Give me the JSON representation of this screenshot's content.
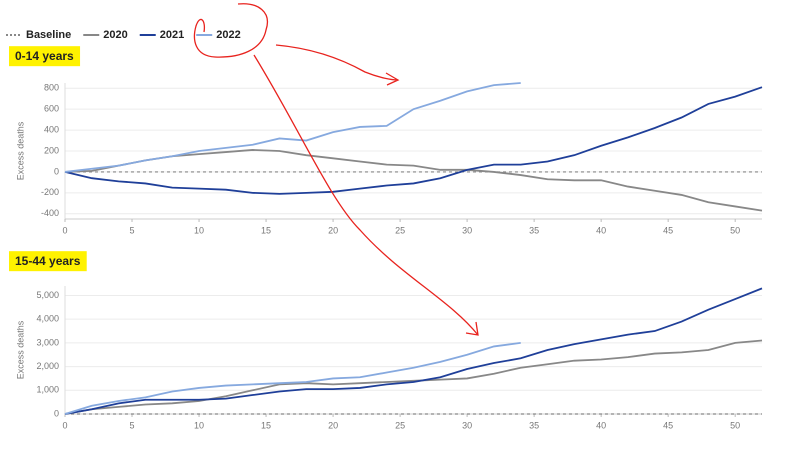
{
  "chart_data": [
    {
      "type": "line",
      "title": "0-14 years",
      "ylabel": "Excess deaths",
      "x": [
        0,
        2,
        4,
        6,
        8,
        10,
        12,
        14,
        16,
        18,
        20,
        22,
        24,
        26,
        28,
        30,
        32,
        34,
        36,
        38,
        40,
        42,
        44,
        46,
        48,
        50,
        52
      ],
      "series": [
        {
          "name": "Baseline",
          "color": "#888888",
          "dashed": true,
          "values": [
            0,
            0,
            0,
            0,
            0,
            0,
            0,
            0,
            0,
            0,
            0,
            0,
            0,
            0,
            0,
            0,
            0,
            0,
            0,
            0,
            0,
            0,
            0,
            0,
            0,
            0,
            0
          ]
        },
        {
          "name": "2020",
          "color": "#888888",
          "values": [
            0,
            10,
            60,
            110,
            150,
            170,
            190,
            210,
            200,
            160,
            130,
            100,
            70,
            60,
            20,
            20,
            0,
            -30,
            -70,
            -80,
            -80,
            -140,
            -180,
            -220,
            -290,
            -330,
            -370
          ]
        },
        {
          "name": "2021",
          "color": "#1f3f99",
          "values": [
            0,
            -60,
            -90,
            -110,
            -150,
            -160,
            -170,
            -200,
            -210,
            -200,
            -190,
            -160,
            -130,
            -110,
            -60,
            20,
            70,
            70,
            100,
            160,
            250,
            330,
            420,
            520,
            650,
            720,
            810
          ]
        },
        {
          "name": "2022",
          "color": "#86a9df",
          "values": [
            0,
            30,
            60,
            110,
            150,
            200,
            230,
            260,
            320,
            300,
            380,
            430,
            440,
            600,
            680,
            770,
            830,
            850,
            null,
            null,
            null,
            null,
            null,
            null,
            null,
            null,
            null
          ]
        }
      ],
      "xlim": [
        0,
        52
      ],
      "xticks": [
        0,
        5,
        10,
        15,
        20,
        25,
        30,
        35,
        40,
        45,
        50
      ],
      "ylim": [
        -450,
        850
      ],
      "yticks": [
        -400,
        -200,
        0,
        200,
        400,
        600,
        800
      ],
      "grid": true
    },
    {
      "type": "line",
      "title": "15-44 years",
      "ylabel": "Excess deaths",
      "x": [
        0,
        2,
        4,
        6,
        8,
        10,
        12,
        14,
        16,
        18,
        20,
        22,
        24,
        26,
        28,
        30,
        32,
        34,
        36,
        38,
        40,
        42,
        44,
        46,
        48,
        50,
        52
      ],
      "series": [
        {
          "name": "Baseline",
          "color": "#888888",
          "dashed": true,
          "values": [
            0,
            0,
            0,
            0,
            0,
            0,
            0,
            0,
            0,
            0,
            0,
            0,
            0,
            0,
            0,
            0,
            0,
            0,
            0,
            0,
            0,
            0,
            0,
            0,
            0,
            0,
            0
          ]
        },
        {
          "name": "2020",
          "color": "#888888",
          "values": [
            0,
            200,
            300,
            400,
            450,
            550,
            750,
            1000,
            1250,
            1300,
            1250,
            1300,
            1350,
            1400,
            1450,
            1500,
            1700,
            1950,
            2100,
            2250,
            2300,
            2400,
            2550,
            2600,
            2700,
            3000,
            3100
          ]
        },
        {
          "name": "2021",
          "color": "#1f3f99",
          "values": [
            0,
            200,
            450,
            600,
            600,
            600,
            650,
            800,
            950,
            1050,
            1050,
            1100,
            1250,
            1350,
            1550,
            1900,
            2150,
            2350,
            2700,
            2950,
            3150,
            3350,
            3500,
            3900,
            4400,
            4850,
            5300
          ]
        },
        {
          "name": "2022",
          "color": "#86a9df",
          "values": [
            0,
            350,
            550,
            700,
            950,
            1100,
            1200,
            1250,
            1300,
            1350,
            1500,
            1550,
            1750,
            1950,
            2200,
            2500,
            2850,
            3000,
            null,
            null,
            null,
            null,
            null,
            null,
            null,
            null,
            null
          ]
        }
      ],
      "xlim": [
        0,
        52
      ],
      "xticks": [
        0,
        5,
        10,
        15,
        20,
        25,
        30,
        35,
        40,
        45,
        50
      ],
      "ylim": [
        0,
        5400
      ],
      "yticks": [
        0,
        {
          "value": 1000,
          "label": "1,000"
        },
        {
          "value": 2000,
          "label": "2,000"
        },
        {
          "value": 3000,
          "label": "3,000"
        },
        {
          "value": 4000,
          "label": "4,000"
        },
        {
          "value": 5000,
          "label": "5,000"
        }
      ],
      "grid": true
    }
  ]
}
